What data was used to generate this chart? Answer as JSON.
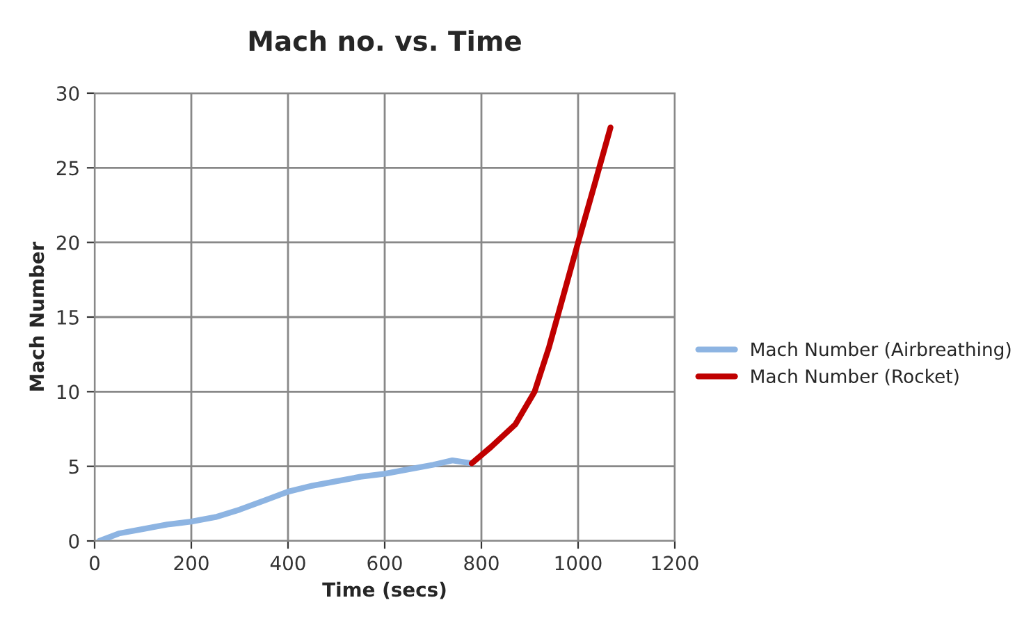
{
  "chart_data": {
    "type": "line",
    "title": "Mach no. vs. Time",
    "xlabel": "Time (secs)",
    "ylabel": "Mach Number",
    "series": [
      {
        "name": "Mach Number (Airbreathing)",
        "color": "#8db4e2",
        "x": [
          10,
          50,
          100,
          150,
          200,
          250,
          300,
          350,
          400,
          450,
          500,
          550,
          600,
          650,
          700,
          740,
          780
        ],
        "values": [
          0,
          0.5,
          0.8,
          1.1,
          1.3,
          1.6,
          2.1,
          2.7,
          3.3,
          3.7,
          4.0,
          4.3,
          4.5,
          4.8,
          5.1,
          5.4,
          5.2
        ]
      },
      {
        "name": "Mach Number (Rocket)",
        "color": "#c00000",
        "x": [
          780,
          820,
          870,
          910,
          940,
          970,
          1000,
          1035,
          1067
        ],
        "values": [
          5.2,
          6.3,
          7.8,
          10,
          13,
          16.5,
          20,
          24,
          27.7
        ]
      }
    ],
    "xlim": [
      0,
      1200
    ],
    "xticks": [
      0,
      200,
      400,
      600,
      800,
      1000,
      1200
    ],
    "ylim": [
      0,
      30
    ],
    "yticks": [
      0,
      5,
      10,
      15,
      20,
      25,
      30
    ],
    "grid": true,
    "legend": "right",
    "marker": "none",
    "line_style": "solid"
  }
}
